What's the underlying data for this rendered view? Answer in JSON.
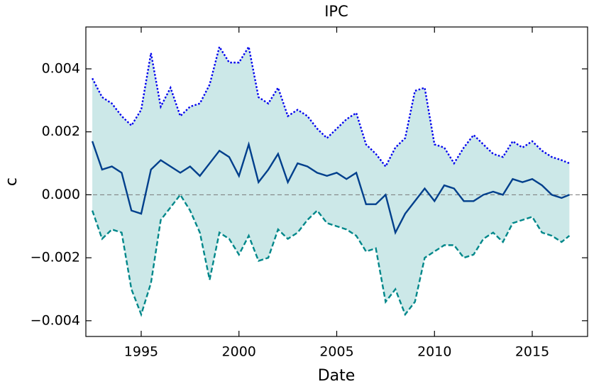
{
  "chart_data": {
    "type": "line",
    "title": "IPC",
    "xlabel": "Date",
    "ylabel": "c",
    "x": [
      1992.5,
      1993,
      1993.5,
      1994,
      1994.5,
      1995,
      1995.5,
      1996,
      1996.5,
      1997,
      1997.5,
      1998,
      1998.5,
      1999,
      1999.5,
      2000,
      2000.5,
      2001,
      2001.5,
      2002,
      2002.5,
      2003,
      2003.5,
      2004,
      2004.5,
      2005,
      2005.5,
      2006,
      2006.5,
      2007,
      2007.5,
      2008,
      2008.5,
      2009,
      2009.5,
      2010,
      2010.5,
      2011,
      2011.5,
      2012,
      2012.5,
      2013,
      2013.5,
      2014,
      2014.5,
      2015,
      2015.5,
      2016,
      2016.5,
      2016.9
    ],
    "series": [
      {
        "color": "#003f8c",
        "style": "solid",
        "values": [
          0.0017,
          0.0008,
          0.0009,
          0.0007,
          -0.0005,
          -0.0006,
          0.0008,
          0.0011,
          0.0009,
          0.0007,
          0.0009,
          0.0006,
          0.001,
          0.0014,
          0.0012,
          0.0006,
          0.0016,
          0.0004,
          0.0008,
          0.0013,
          0.0004,
          0.001,
          0.0009,
          0.0007,
          0.0006,
          0.0007,
          0.0005,
          0.0007,
          -0.0003,
          -0.0003,
          0.0,
          -0.0012,
          -0.0006,
          -0.0002,
          0.0002,
          -0.0002,
          0.0003,
          0.0002,
          -0.0002,
          -0.0002,
          0.0,
          0.0001,
          0.0,
          0.0005,
          0.0004,
          0.0005,
          0.0003,
          0.0,
          -0.0001,
          0.0
        ]
      },
      {
        "color": "#0000ee",
        "style": "dotted",
        "values": [
          0.0037,
          0.0031,
          0.0029,
          0.0025,
          0.0022,
          0.0027,
          0.0045,
          0.0028,
          0.0034,
          0.0025,
          0.0028,
          0.0029,
          0.0035,
          0.0047,
          0.0042,
          0.0042,
          0.0047,
          0.0031,
          0.0029,
          0.0034,
          0.0025,
          0.0027,
          0.0025,
          0.0021,
          0.0018,
          0.0021,
          0.0024,
          0.0026,
          0.0016,
          0.0013,
          0.0009,
          0.0015,
          0.0018,
          0.0033,
          0.0034,
          0.0016,
          0.0015,
          0.001,
          0.0015,
          0.0019,
          0.0016,
          0.0013,
          0.0012,
          0.0017,
          0.0015,
          0.0017,
          0.0014,
          0.0012,
          0.0011,
          0.001
        ]
      },
      {
        "color": "#00878a",
        "style": "dashed",
        "values": [
          -0.0005,
          -0.0014,
          -0.0011,
          -0.0012,
          -0.003,
          -0.0038,
          -0.0028,
          -0.0008,
          -0.0004,
          0.0,
          -0.0005,
          -0.0012,
          -0.0027,
          -0.0012,
          -0.0014,
          -0.0019,
          -0.0013,
          -0.0021,
          -0.002,
          -0.0011,
          -0.0014,
          -0.0012,
          -0.0008,
          -0.0005,
          -0.0009,
          -0.001,
          -0.0011,
          -0.0013,
          -0.0018,
          -0.0017,
          -0.0034,
          -0.003,
          -0.0038,
          -0.0034,
          -0.002,
          -0.0018,
          -0.0016,
          -0.0016,
          -0.002,
          -0.0019,
          -0.0014,
          -0.0012,
          -0.0015,
          -0.0009,
          -0.0008,
          -0.0007,
          -0.0012,
          -0.0013,
          -0.0015,
          -0.0013
        ]
      }
    ],
    "band_color": "#cce8e8",
    "reference_line": 0,
    "xlim": [
      1992.17,
      2017.83
    ],
    "xticks": [
      1995,
      2000,
      2005,
      2010,
      2015
    ],
    "ylim": [
      -0.0045,
      0.00533
    ],
    "yticks": [
      {
        "value": -0.004,
        "label": "−0.004"
      },
      {
        "value": -0.002,
        "label": "−0.002"
      },
      {
        "value": 0,
        "label": "0.000"
      },
      {
        "value": 0.002,
        "label": "0.002"
      },
      {
        "value": 0.004,
        "label": "0.004"
      }
    ],
    "grid": false
  }
}
